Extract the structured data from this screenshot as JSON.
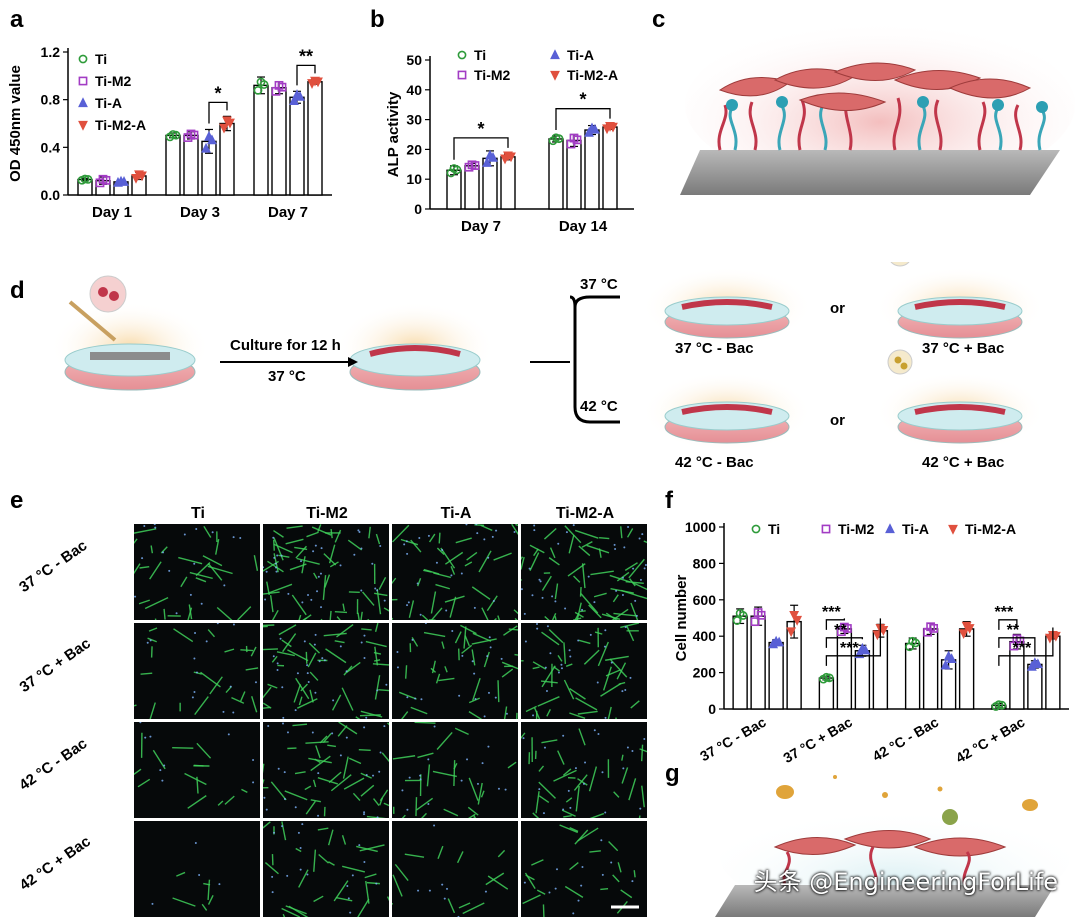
{
  "panels": {
    "a": "a",
    "b": "b",
    "c": "c",
    "d": "d",
    "e": "e",
    "f": "f",
    "g": "g"
  },
  "chart_data": [
    {
      "id": "a",
      "type": "bar",
      "ylabel": "OD 450nm value",
      "ylim": [
        0,
        1.2
      ],
      "yticks": [
        "0.0",
        "0.4",
        "0.8",
        "1.2"
      ],
      "categories": [
        "Day 1",
        "Day 3",
        "Day 7"
      ],
      "series": [
        {
          "name": "Ti",
          "values": [
            0.13,
            0.5,
            0.92
          ],
          "err": [
            0.01,
            0.02,
            0.07
          ]
        },
        {
          "name": "Ti-M2",
          "values": [
            0.12,
            0.5,
            0.9
          ],
          "err": [
            0.03,
            0.03,
            0.05
          ]
        },
        {
          "name": "Ti-A",
          "values": [
            0.11,
            0.45,
            0.82
          ],
          "err": [
            0.01,
            0.1,
            0.05
          ]
        },
        {
          "name": "Ti-M2-A",
          "values": [
            0.16,
            0.6,
            0.95
          ],
          "err": [
            0.03,
            0.06,
            0.02
          ]
        }
      ],
      "significance": [
        {
          "group": "Day 3",
          "from": "Ti-A",
          "to": "Ti-M2-A",
          "label": "*"
        },
        {
          "group": "Day 7",
          "from": "Ti-A",
          "to": "Ti-M2-A",
          "label": "**"
        }
      ],
      "legend_position": "top-left"
    },
    {
      "id": "b",
      "type": "bar",
      "ylabel": "ALP activity",
      "ylim": [
        0,
        50
      ],
      "yticks": [
        "0",
        "10",
        "20",
        "30",
        "40",
        "50"
      ],
      "categories": [
        "Day 7",
        "Day 14"
      ],
      "series": [
        {
          "name": "Ti",
          "values": [
            13,
            23.5
          ],
          "err": [
            1.5,
            1
          ]
        },
        {
          "name": "Ti-M2",
          "values": [
            14.5,
            23
          ],
          "err": [
            0.8,
            2
          ]
        },
        {
          "name": "Ti-A",
          "values": [
            17,
            26.5
          ],
          "err": [
            2.5,
            1.5
          ]
        },
        {
          "name": "Ti-M2-A",
          "values": [
            17.5,
            27.5
          ],
          "err": [
            1,
            0.8
          ]
        }
      ],
      "significance": [
        {
          "group": "Day 7",
          "from": "Ti",
          "to": "Ti-M2-A",
          "label": "*"
        },
        {
          "group": "Day 14",
          "from": "Ti",
          "to": "Ti-M2-A",
          "label": "*"
        }
      ],
      "legend_position": "top"
    },
    {
      "id": "f",
      "type": "bar",
      "ylabel": "Cell number",
      "ylim": [
        0,
        1000
      ],
      "yticks": [
        "0",
        "200",
        "400",
        "600",
        "800",
        "1000"
      ],
      "categories": [
        "37 °C - Bac",
        "37 °C + Bac",
        "42 °C - Bac",
        "42 °C + Bac"
      ],
      "series": [
        {
          "name": "Ti",
          "values": [
            510,
            170,
            360,
            20
          ],
          "err": [
            40,
            10,
            30,
            10
          ]
        },
        {
          "name": "Ti-M2",
          "values": [
            510,
            440,
            440,
            370
          ],
          "err": [
            50,
            25,
            30,
            40
          ]
        },
        {
          "name": "Ti-A",
          "values": [
            365,
            320,
            270,
            245
          ],
          "err": [
            15,
            30,
            50,
            20
          ]
        },
        {
          "name": "Ti-M2-A",
          "values": [
            480,
            430,
            440,
            400
          ],
          "err": [
            90,
            35,
            40,
            15
          ]
        }
      ],
      "significance": [
        {
          "group": "37 °C + Bac",
          "from": "Ti",
          "to": "Ti-M2",
          "label": "***"
        },
        {
          "group": "37 °C + Bac",
          "from": "Ti",
          "to": "Ti-A",
          "label": "**"
        },
        {
          "group": "37 °C + Bac",
          "from": "Ti",
          "to": "Ti-M2-A",
          "label": "***"
        },
        {
          "group": "42 °C + Bac",
          "from": "Ti",
          "to": "Ti-M2",
          "label": "***"
        },
        {
          "group": "42 °C + Bac",
          "from": "Ti",
          "to": "Ti-A",
          "label": "**"
        },
        {
          "group": "42 °C + Bac",
          "from": "Ti",
          "to": "Ti-M2-A",
          "label": "***"
        }
      ],
      "legend_position": "top"
    }
  ],
  "colors": {
    "Ti": "#2e9b3a",
    "Ti-M2": "#a23cc4",
    "Ti-A": "#5960d6",
    "Ti-M2-A": "#e0503e"
  },
  "markers": {
    "Ti": "circle",
    "Ti-M2": "square",
    "Ti-A": "triangle-up",
    "Ti-M2-A": "triangle-down"
  },
  "schematic_d": {
    "step_label": "Culture for 12 h",
    "step_temp": "37 °C",
    "branch_top": "37 °C",
    "branch_bottom": "42 °C",
    "conditions": [
      "37 °C - Bac",
      "37 °C + Bac",
      "42 °C - Bac",
      "42 °C + Bac"
    ],
    "or_top": "or",
    "or_bottom": "or"
  },
  "micrographs": {
    "columns": [
      "Ti",
      "Ti-M2",
      "Ti-A",
      "Ti-M2-A"
    ],
    "rows": [
      "37 °C - Bac",
      "37 °C + Bac",
      "42 °C - Bac",
      "42 °C + Bac"
    ]
  },
  "watermark": "头条 @EngineeringForLife"
}
